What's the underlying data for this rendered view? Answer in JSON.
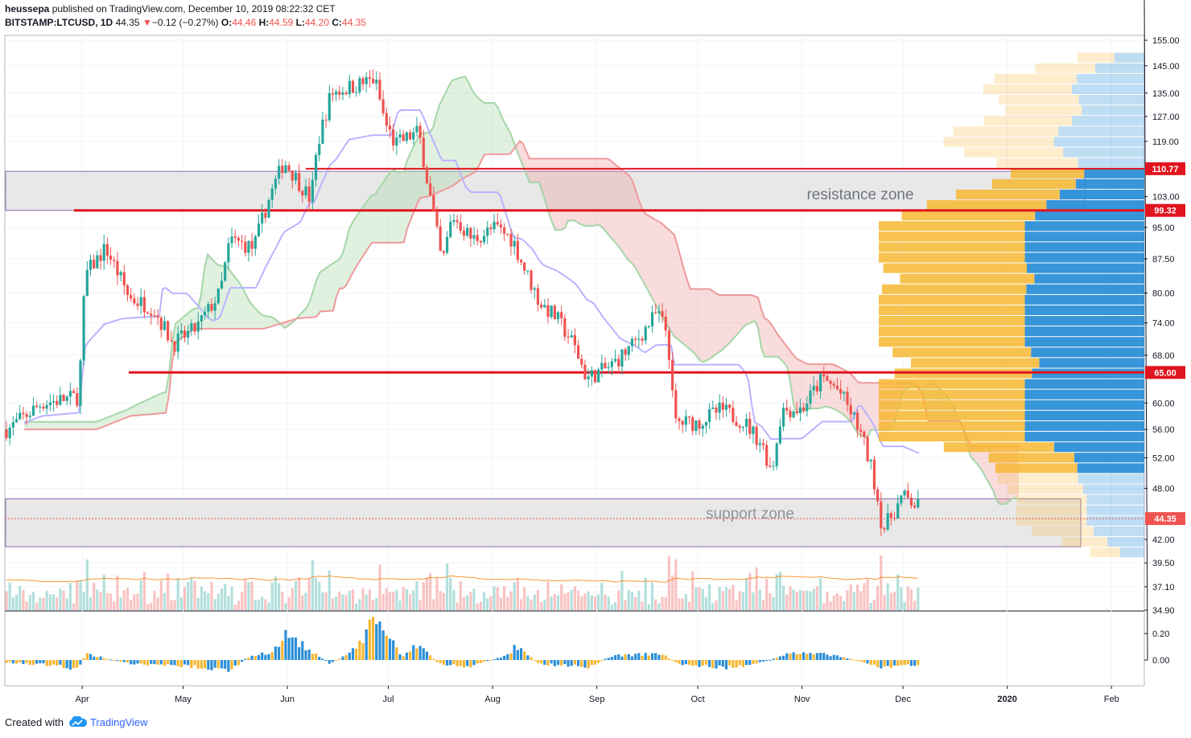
{
  "header": {
    "author": "heussepa",
    "published_text": "published on TradingView.com, December 10, 2019 08:22:32 CET",
    "symbol": "BITSTAMP:LTCUSD, 1D",
    "last": "44.35",
    "change_arrow": "▼",
    "change": "−0.12 (−0.27%)",
    "o_label": "O:",
    "o": "44.46",
    "h_label": "H:",
    "h": "44.59",
    "l_label": "L:",
    "l": "44.20",
    "c_label": "C:",
    "c": "44.35"
  },
  "footer": {
    "created_with": "Created with",
    "brand": "TradingView",
    "logo_icon": "tradingview-cloud-icon"
  },
  "colors": {
    "up": "#26a69a",
    "down": "#ef5350",
    "level_line": "#e0141e",
    "zone_fill": "#e6e6e6",
    "zone_border": "#8e6bb0",
    "cloud_bull": "#a5d6a7",
    "cloud_bear": "#ef9a9a",
    "vp_up": "#2c8fd8",
    "vp_down": "#f7b733",
    "kijun": "#b9b3ff",
    "hist_up": "#2c8fd8",
    "hist_down": "#f7b733"
  },
  "chart_data": {
    "type": "candlestick",
    "symbol": "BITSTAMP:LTCUSD",
    "interval": "1D",
    "x_axis": {
      "labels": [
        "Apr",
        "May",
        "Jun",
        "Jul",
        "Aug",
        "Sep",
        "Oct",
        "Nov",
        "Dec",
        "2020",
        "Feb"
      ],
      "bold_labels": [
        "2020"
      ]
    },
    "y_axis": {
      "ticks": [
        "155.00",
        "145.00",
        "135.00",
        "127.00",
        "119.00",
        "103.00",
        "95.00",
        "87.50",
        "80.00",
        "74.00",
        "68.00",
        "60.00",
        "56.00",
        "52.00",
        "48.00",
        "42.00",
        "39.50",
        "37.10",
        "34.90"
      ],
      "scale": "log",
      "range": [
        34.9,
        157
      ]
    },
    "price_tags": [
      {
        "value": 110.77,
        "label": "110.77",
        "color": "#e0141e"
      },
      {
        "value": 99.32,
        "label": "99.32",
        "color": "#e0141e"
      },
      {
        "value": 65.0,
        "label": "65.00",
        "color": "#e0141e"
      },
      {
        "value": 44.35,
        "label": "44.35",
        "color": "#ef5350"
      }
    ],
    "zones": [
      {
        "label": "resistance zone",
        "low": 99.32,
        "high": 110.0
      },
      {
        "label": "support zone",
        "low": 41.2,
        "high": 46.7
      }
    ],
    "levels": [
      110.77,
      99.32,
      65.0
    ],
    "price_path": [
      [
        "2019-03-10",
        56
      ],
      [
        "2019-03-20",
        60
      ],
      [
        "2019-03-31",
        61
      ],
      [
        "2019-04-02",
        84
      ],
      [
        "2019-04-08",
        90
      ],
      [
        "2019-04-15",
        79
      ],
      [
        "2019-04-22",
        77
      ],
      [
        "2019-04-28",
        70
      ],
      [
        "2019-05-05",
        73
      ],
      [
        "2019-05-12",
        80
      ],
      [
        "2019-05-15",
        92
      ],
      [
        "2019-05-22",
        90
      ],
      [
        "2019-05-26",
        101
      ],
      [
        "2019-05-31",
        113
      ],
      [
        "2019-06-08",
        102
      ],
      [
        "2019-06-10",
        118
      ],
      [
        "2019-06-14",
        135
      ],
      [
        "2019-06-22",
        138
      ],
      [
        "2019-06-27",
        140
      ],
      [
        "2019-06-30",
        125
      ],
      [
        "2019-07-03",
        118
      ],
      [
        "2019-07-10",
        122
      ],
      [
        "2019-07-13",
        105
      ],
      [
        "2019-07-17",
        86
      ],
      [
        "2019-07-20",
        98
      ],
      [
        "2019-07-26",
        92
      ],
      [
        "2019-08-02",
        95
      ],
      [
        "2019-08-07",
        92
      ],
      [
        "2019-08-10",
        86
      ],
      [
        "2019-08-15",
        78
      ],
      [
        "2019-08-20",
        75
      ],
      [
        "2019-08-25",
        70
      ],
      [
        "2019-08-29",
        64
      ],
      [
        "2019-09-05",
        66
      ],
      [
        "2019-09-12",
        70
      ],
      [
        "2019-09-19",
        76
      ],
      [
        "2019-09-22",
        72
      ],
      [
        "2019-09-24",
        57
      ],
      [
        "2019-10-01",
        57
      ],
      [
        "2019-10-08",
        59
      ],
      [
        "2019-10-15",
        57
      ],
      [
        "2019-10-20",
        54
      ],
      [
        "2019-10-23",
        50
      ],
      [
        "2019-10-26",
        59
      ],
      [
        "2019-11-01",
        59
      ],
      [
        "2019-11-07",
        64
      ],
      [
        "2019-11-12",
        62
      ],
      [
        "2019-11-18",
        56
      ],
      [
        "2019-11-22",
        50
      ],
      [
        "2019-11-25",
        43
      ],
      [
        "2019-12-01",
        47
      ],
      [
        "2019-12-10",
        44.35
      ]
    ],
    "volume_profile": {
      "rows": 48,
      "up_color": "#2c8fd8",
      "down_color": "#f7b733"
    },
    "oscillator": {
      "ticks": [
        "0.20",
        "0.00"
      ],
      "hist_path": [
        [
          "2019-03-10",
          -0.02
        ],
        [
          "2019-03-25",
          -0.04
        ],
        [
          "2019-03-31",
          -0.07
        ],
        [
          "2019-04-02",
          0.05
        ],
        [
          "2019-04-15",
          -0.03
        ],
        [
          "2019-05-05",
          -0.05
        ],
        [
          "2019-05-15",
          -0.08
        ],
        [
          "2019-05-20",
          0.02
        ],
        [
          "2019-05-28",
          0.07
        ],
        [
          "2019-06-01",
          0.2
        ],
        [
          "2019-06-08",
          0.06
        ],
        [
          "2019-06-14",
          -0.03
        ],
        [
          "2019-06-22",
          0.1
        ],
        [
          "2019-06-27",
          0.33
        ],
        [
          "2019-07-01",
          0.18
        ],
        [
          "2019-07-05",
          0.02
        ],
        [
          "2019-07-10",
          0.12
        ],
        [
          "2019-07-16",
          -0.03
        ],
        [
          "2019-07-25",
          -0.05
        ],
        [
          "2019-08-05",
          0.03
        ],
        [
          "2019-08-08",
          0.1
        ],
        [
          "2019-08-15",
          -0.03
        ],
        [
          "2019-08-30",
          -0.05
        ],
        [
          "2019-09-05",
          0.03
        ],
        [
          "2019-09-20",
          0.05
        ],
        [
          "2019-09-25",
          -0.03
        ],
        [
          "2019-10-10",
          -0.06
        ],
        [
          "2019-10-20",
          -0.02
        ],
        [
          "2019-10-28",
          0.05
        ],
        [
          "2019-11-10",
          0.04
        ],
        [
          "2019-11-20",
          -0.02
        ],
        [
          "2019-11-25",
          -0.06
        ],
        [
          "2019-12-10",
          -0.02
        ]
      ]
    }
  }
}
